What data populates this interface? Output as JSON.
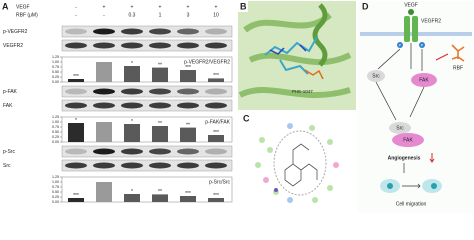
{
  "panel_a": {
    "label": "A",
    "treatments": [
      {
        "name": "VEGF",
        "levels": [
          "-",
          "+",
          "+",
          "+",
          "+",
          "+"
        ]
      },
      {
        "name": "RBF (μM)",
        "levels": [
          "-",
          "-",
          "0.3",
          "1",
          "3",
          "10"
        ]
      }
    ],
    "blots": [
      "p-VEGFR2",
      "VEGFR2",
      "p-FAK",
      "FAK",
      "p-Src",
      "Src"
    ],
    "charts": [
      {
        "type": "bar",
        "title": "p-VEGFR2/VEGFR2",
        "values": [
          0.15,
          1.0,
          0.8,
          0.72,
          0.6,
          0.18
        ],
        "significance": [
          "***",
          null,
          "*",
          "**",
          "***",
          "***"
        ],
        "colors": [
          "#2b2b2b",
          "#9a9a9a",
          "#5a5a5a",
          "#5a5a5a",
          "#5a5a5a",
          "#5a5a5a"
        ],
        "ylim": [
          0,
          1.25
        ],
        "yticks": [
          {
            "value": 0,
            "label": "0.00"
          },
          {
            "value": 0.25,
            "label": "0.25"
          },
          {
            "value": 0.5,
            "label": "0.50"
          },
          {
            "value": 0.75,
            "label": "0.75"
          },
          {
            "value": 1,
            "label": "1.00"
          },
          {
            "value": 1.25,
            "label": "1.25"
          }
        ]
      },
      {
        "type": "bar",
        "title": "p-FAK/FAK",
        "values": [
          0.95,
          1.0,
          0.9,
          0.8,
          0.72,
          0.35
        ],
        "significance": [
          "*",
          null,
          "*",
          "**",
          "**",
          "***"
        ],
        "colors": [
          "#2b2b2b",
          "#9a9a9a",
          "#5a5a5a",
          "#5a5a5a",
          "#5a5a5a",
          "#5a5a5a"
        ],
        "ylim": [
          0,
          1.25
        ],
        "yticks": [
          {
            "value": 0,
            "label": "0.00"
          },
          {
            "value": 0.25,
            "label": "0.25"
          },
          {
            "value": 0.5,
            "label": "0.50"
          },
          {
            "value": 0.75,
            "label": "0.75"
          },
          {
            "value": 1,
            "label": "1.00"
          },
          {
            "value": 1.25,
            "label": "1.25"
          }
        ]
      },
      {
        "type": "bar",
        "title": "p-Src/Src",
        "values": [
          0.2,
          1.0,
          0.4,
          0.38,
          0.3,
          0.2
        ],
        "significance": [
          "***",
          null,
          "*",
          "**",
          "***",
          "***"
        ],
        "colors": [
          "#2b2b2b",
          "#9a9a9a",
          "#5a5a5a",
          "#5a5a5a",
          "#5a5a5a",
          "#5a5a5a"
        ],
        "ylim": [
          0,
          1.25
        ],
        "yticks": [
          {
            "value": 0,
            "label": "0.00"
          },
          {
            "value": 0.25,
            "label": "0.25"
          },
          {
            "value": 0.5,
            "label": "0.50"
          },
          {
            "value": 0.75,
            "label": "0.75"
          },
          {
            "value": 1,
            "label": "1.00"
          },
          {
            "value": 1.25,
            "label": "1.25"
          }
        ]
      }
    ]
  },
  "panel_b": {
    "label": "B",
    "residue": "PHE-1047"
  },
  "panel_c": {
    "label": "C"
  },
  "panel_d": {
    "label": "D",
    "ligand": "VEGF",
    "receptor": "VEGFR2",
    "inhibitor": "RBF",
    "nodes": [
      "Src",
      "FAK",
      "Src",
      "FAK"
    ],
    "phospho": "P",
    "outcome": "Angiogenesis",
    "result": "Cell migration"
  }
}
